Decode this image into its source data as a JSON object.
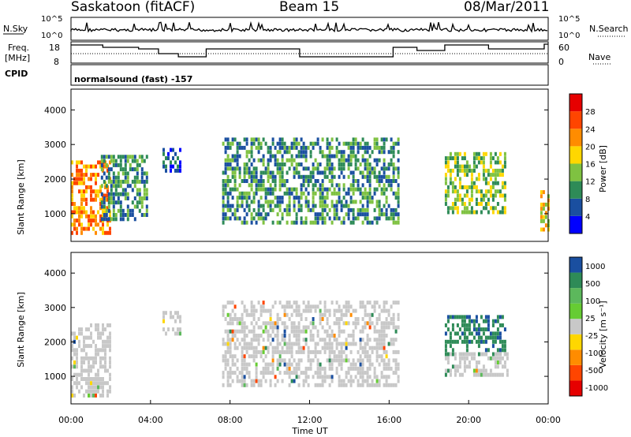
{
  "header": {
    "station": "Saskatoon (fitACF)",
    "beam": "Beam 15",
    "date": "08/Mar/2011"
  },
  "top_panel": {
    "left_label": "N.Sky",
    "left_ticks": [
      "10^5",
      "10^0"
    ],
    "right_label": "N.Search",
    "right_ticks": [
      "10^5",
      "10^0"
    ]
  },
  "freq_panel": {
    "left_label_1": "Freq.",
    "left_label_2": "[MHz]",
    "left_ticks": [
      "18",
      "8"
    ],
    "right_label": "Nave",
    "right_ticks": [
      "60",
      "0"
    ]
  },
  "cpid_label": "CPID",
  "cpid_value": "normalsound (fast) -157",
  "colors": {
    "power": [
      "#0000ff",
      "#1a4fa0",
      "#2e8b57",
      "#7fc241",
      "#ffd700",
      "#ff8c00",
      "#ff4500",
      "#e60000"
    ],
    "velocity": [
      "#1a4fa0",
      "#2e8b57",
      "#5cb85c",
      "#66cc33",
      "#c8c8c8",
      "#ffd700",
      "#ff8c00",
      "#ff4500",
      "#e60000"
    ],
    "ground": "#c8c8c8"
  },
  "chart_data": [
    {
      "type": "heatmap",
      "ylabel": "Slant Range [km]",
      "xlim_hours": [
        0,
        24
      ],
      "ylim": [
        200,
        4600
      ],
      "yticks": [
        "1000",
        "2000",
        "3000",
        "4000"
      ],
      "colorbar_label": "Power [dB]",
      "colorbar_ticks": [
        "4",
        "8",
        "12",
        "16",
        "20",
        "24",
        "28"
      ],
      "echo_regions": [
        {
          "t": [
            0.0,
            2.0
          ],
          "range": [
            500,
            2600
          ],
          "power_db": 22
        },
        {
          "t": [
            1.5,
            3.8
          ],
          "range": [
            900,
            2800
          ],
          "power_db": 10
        },
        {
          "t": [
            4.6,
            5.5
          ],
          "range": [
            2300,
            3000
          ],
          "power_db": 9
        },
        {
          "t": [
            7.6,
            16.5
          ],
          "range": [
            800,
            3300
          ],
          "power_db": 12
        },
        {
          "t": [
            18.8,
            21.8
          ],
          "range": [
            1100,
            2800
          ],
          "power_db": 14
        },
        {
          "t": [
            23.6,
            24.0
          ],
          "range": [
            600,
            1700
          ],
          "power_db": 18
        }
      ]
    },
    {
      "type": "heatmap",
      "ylabel": "Slant Range [km]",
      "xlabel": "Time UT",
      "xlim_hours": [
        0,
        24
      ],
      "ylim": [
        200,
        4600
      ],
      "yticks": [
        "1000",
        "2000",
        "3000",
        "4000"
      ],
      "xticks": [
        "00:00",
        "04:00",
        "08:00",
        "12:00",
        "16:00",
        "20:00",
        "00:00"
      ],
      "colorbar_label": "Velocity [m s⁻¹]",
      "colorbar_ticks": [
        "1000",
        "500",
        "100",
        "25",
        "-25",
        "-100",
        "-500",
        "-1000"
      ],
      "echo_regions": [
        {
          "t": [
            0.0,
            2.0
          ],
          "range": [
            500,
            2600
          ],
          "velocity": 0
        },
        {
          "t": [
            4.6,
            5.5
          ],
          "range": [
            2300,
            3000
          ],
          "velocity": 0
        },
        {
          "t": [
            7.6,
            16.5
          ],
          "range": [
            800,
            3300
          ],
          "velocity": 0
        },
        {
          "t": [
            18.8,
            21.8
          ],
          "range": [
            1700,
            2800
          ],
          "velocity": 300
        },
        {
          "t": [
            18.8,
            22.0
          ],
          "range": [
            1100,
            1800
          ],
          "velocity": 0
        }
      ]
    }
  ]
}
